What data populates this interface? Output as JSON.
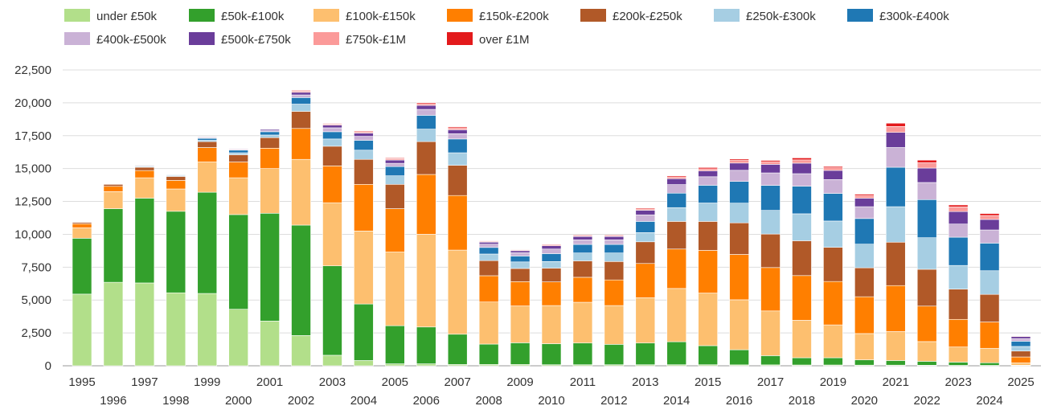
{
  "chart_data": {
    "type": "bar",
    "stacked": true,
    "title": "",
    "xlabel": "",
    "ylabel": "",
    "ylim": [
      0,
      22500
    ],
    "yticks": [
      0,
      2500,
      5000,
      7500,
      10000,
      12500,
      15000,
      17500,
      20000,
      22500
    ],
    "ytick_labels": [
      "0",
      "2,500",
      "5,000",
      "7,500",
      "10,000",
      "12,500",
      "15,000",
      "17,500",
      "20,000",
      "22,500"
    ],
    "grid": true,
    "legend_position": "top",
    "categories": [
      "1995",
      "1996",
      "1997",
      "1998",
      "1999",
      "2000",
      "2001",
      "2002",
      "2003",
      "2004",
      "2005",
      "2006",
      "2007",
      "2008",
      "2009",
      "2010",
      "2011",
      "2012",
      "2013",
      "2014",
      "2015",
      "2016",
      "2017",
      "2018",
      "2019",
      "2020",
      "2021",
      "2022",
      "2023",
      "2024",
      "2025"
    ],
    "series": [
      {
        "name": "under £50k",
        "color": "#b2df8a",
        "values": [
          5450,
          6350,
          6300,
          5550,
          5500,
          4300,
          3400,
          2300,
          800,
          400,
          150,
          150,
          100,
          100,
          100,
          80,
          80,
          80,
          80,
          80,
          80,
          70,
          70,
          60,
          60,
          50,
          50,
          40,
          30,
          30,
          10
        ]
      },
      {
        "name": "£50k-£100k",
        "color": "#33a02c",
        "values": [
          4250,
          5600,
          6450,
          6200,
          7700,
          7200,
          8200,
          8400,
          6800,
          4300,
          2900,
          2800,
          2300,
          1550,
          1650,
          1600,
          1650,
          1550,
          1650,
          1750,
          1450,
          1150,
          700,
          550,
          550,
          400,
          350,
          300,
          250,
          200,
          30
        ]
      },
      {
        "name": "£100k-£150k",
        "color": "#fdbf6f",
        "values": [
          800,
          1300,
          1550,
          1700,
          2300,
          2800,
          3400,
          5000,
          4800,
          5550,
          5600,
          7050,
          6400,
          3200,
          2800,
          2900,
          3100,
          2950,
          3450,
          4050,
          4000,
          3800,
          3400,
          2850,
          2500,
          2000,
          2200,
          1500,
          1150,
          1100,
          180
        ]
      },
      {
        "name": "£150k-£200k",
        "color": "#ff7f00",
        "values": [
          300,
          400,
          550,
          650,
          1100,
          1200,
          1550,
          2350,
          2800,
          3550,
          3300,
          4550,
          4150,
          2000,
          1850,
          1800,
          1900,
          1950,
          2600,
          3000,
          3250,
          3450,
          3300,
          3400,
          3300,
          2800,
          3500,
          2700,
          2100,
          2000,
          450
        ]
      },
      {
        "name": "£200k-£250k",
        "color": "#b15928",
        "values": [
          100,
          150,
          250,
          300,
          450,
          550,
          800,
          1300,
          1500,
          1900,
          1850,
          2500,
          2300,
          1150,
          1000,
          1050,
          1250,
          1400,
          1650,
          2100,
          2200,
          2400,
          2550,
          2650,
          2600,
          2200,
          3300,
          2800,
          2300,
          2100,
          450
        ]
      },
      {
        "name": "£250k-£300k",
        "color": "#a6cee3",
        "values": [
          20,
          30,
          50,
          70,
          100,
          150,
          200,
          550,
          550,
          700,
          650,
          950,
          950,
          500,
          500,
          500,
          600,
          650,
          700,
          1050,
          1400,
          1500,
          1800,
          2050,
          2000,
          1800,
          2700,
          2400,
          1800,
          1800,
          350
        ]
      },
      {
        "name": "£300k-£400k",
        "color": "#1f78b4",
        "values": [
          20,
          20,
          50,
          50,
          150,
          200,
          250,
          500,
          550,
          750,
          700,
          1050,
          1050,
          500,
          450,
          600,
          650,
          650,
          850,
          1100,
          1350,
          1650,
          1900,
          2100,
          2100,
          1950,
          3000,
          2900,
          2150,
          2100,
          400
        ]
      },
      {
        "name": "£400k-£500k",
        "color": "#cab2d6",
        "values": [
          10,
          10,
          20,
          20,
          50,
          50,
          80,
          200,
          300,
          300,
          250,
          450,
          400,
          250,
          250,
          350,
          350,
          350,
          500,
          650,
          650,
          850,
          950,
          950,
          1050,
          900,
          1500,
          1300,
          1000,
          1000,
          200
        ]
      },
      {
        "name": "£500k-£750k",
        "color": "#6a3d9a",
        "values": [
          10,
          10,
          20,
          20,
          50,
          50,
          100,
          200,
          200,
          250,
          250,
          300,
          300,
          150,
          150,
          250,
          250,
          250,
          350,
          450,
          450,
          550,
          650,
          800,
          700,
          650,
          1150,
          1100,
          950,
          800,
          150
        ]
      },
      {
        "name": "£750k-£1M",
        "color": "#fb9a99",
        "values": [
          0,
          0,
          10,
          10,
          20,
          20,
          30,
          100,
          80,
          100,
          100,
          130,
          150,
          60,
          60,
          70,
          70,
          70,
          100,
          130,
          150,
          200,
          200,
          250,
          200,
          200,
          450,
          400,
          350,
          300,
          50
        ]
      },
      {
        "name": "over £1M",
        "color": "#e31a1c",
        "values": [
          0,
          0,
          10,
          10,
          20,
          20,
          30,
          50,
          50,
          60,
          60,
          80,
          80,
          40,
          40,
          50,
          50,
          50,
          70,
          80,
          100,
          100,
          100,
          150,
          100,
          100,
          250,
          200,
          150,
          150,
          20
        ]
      }
    ]
  }
}
